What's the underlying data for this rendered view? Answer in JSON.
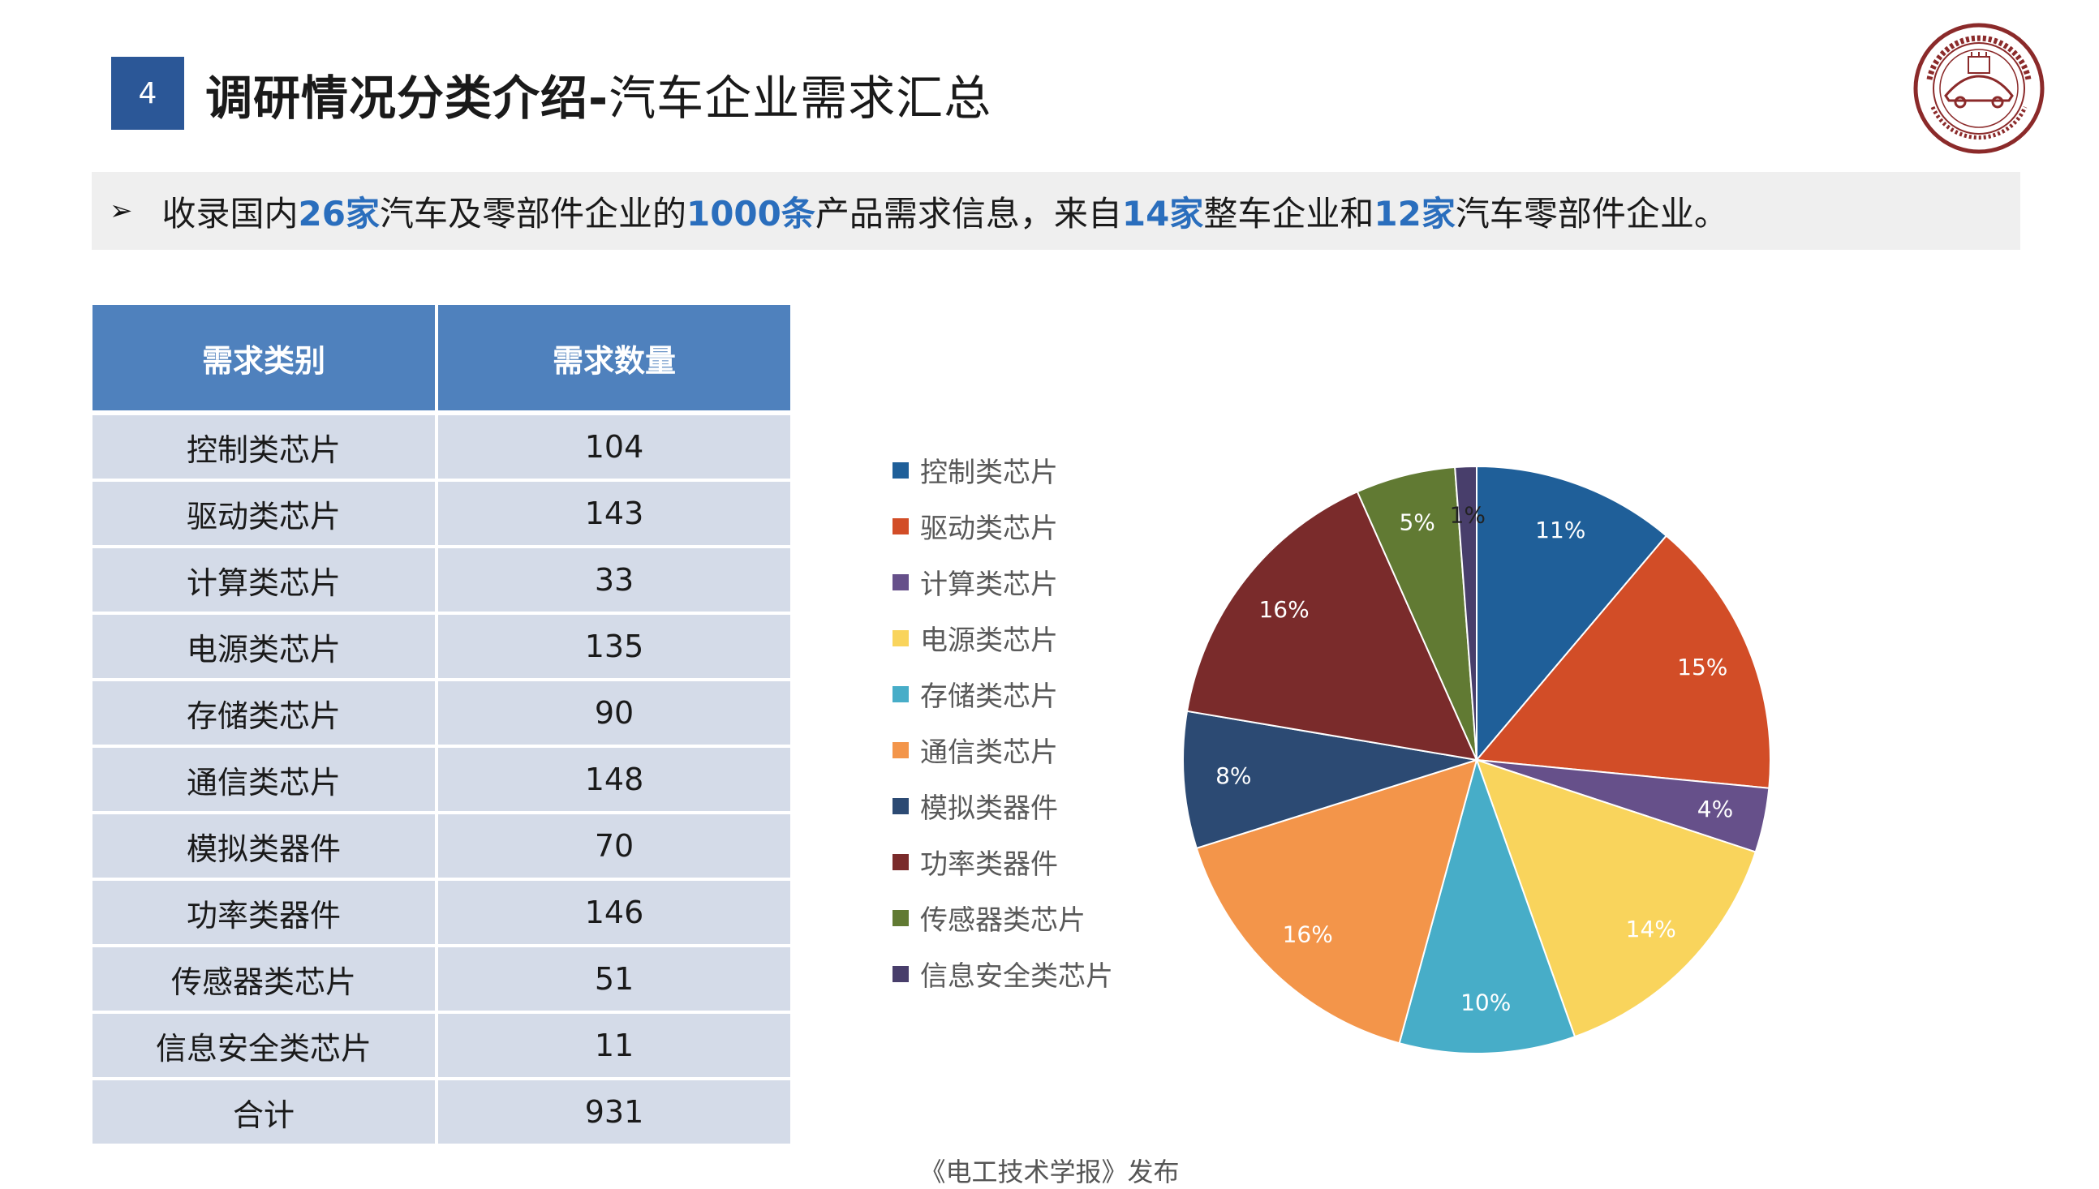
{
  "header": {
    "section_number": "4",
    "title_bold": "调研情况分类介绍-",
    "title_light": "汽车企业需求汇总"
  },
  "summary": {
    "bullet": "➢",
    "parts": [
      {
        "text": "收录国内",
        "hl": false
      },
      {
        "text": "26家",
        "hl": true
      },
      {
        "text": "汽车及零部件企业的",
        "hl": false
      },
      {
        "text": "1000条",
        "hl": true
      },
      {
        "text": "产品需求信息，来自",
        "hl": false
      },
      {
        "text": "14家",
        "hl": true
      },
      {
        "text": "整车企业和",
        "hl": false
      },
      {
        "text": "12家",
        "hl": true
      },
      {
        "text": "汽车零部件企业。",
        "hl": false
      }
    ]
  },
  "table": {
    "headers": [
      "需求类别",
      "需求数量"
    ],
    "rows": [
      [
        "控制类芯片",
        "104"
      ],
      [
        "驱动类芯片",
        "143"
      ],
      [
        "计算类芯片",
        "33"
      ],
      [
        "电源类芯片",
        "135"
      ],
      [
        "存储类芯片",
        "90"
      ],
      [
        "通信类芯片",
        "148"
      ],
      [
        "模拟类器件",
        "70"
      ],
      [
        "功率类器件",
        "146"
      ],
      [
        "传感器类芯片",
        "51"
      ],
      [
        "信息安全类芯片",
        "11"
      ],
      [
        "合计",
        "931"
      ]
    ]
  },
  "chart_data": {
    "type": "pie",
    "categories": [
      "控制类芯片",
      "驱动类芯片",
      "计算类芯片",
      "电源类芯片",
      "存储类芯片",
      "通信类芯片",
      "模拟类器件",
      "功率类器件",
      "传感器类芯片",
      "信息安全类芯片"
    ],
    "values": [
      104,
      143,
      33,
      135,
      90,
      148,
      70,
      146,
      51,
      11
    ],
    "labels": [
      "11%",
      "15%",
      "4%",
      "14%",
      "10%",
      "16%",
      "8%",
      "16%",
      "5%",
      "1%"
    ],
    "colors": [
      "#1f5f99",
      "#d24d27",
      "#66508a",
      "#f9d45c",
      "#47adc8",
      "#f3954a",
      "#2c4a73",
      "#7a2b2b",
      "#617a33",
      "#483e6b"
    ],
    "label_colors": [
      "#ffffff",
      "#ffffff",
      "#ffffff",
      "#ffffff",
      "#ffffff",
      "#ffffff",
      "#ffffff",
      "#ffffff",
      "#ffffff",
      "#222222"
    ],
    "legend_position": "left"
  },
  "footer": "《电工技术学报》发布"
}
